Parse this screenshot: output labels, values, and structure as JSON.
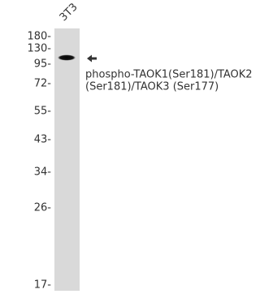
{
  "lane": {
    "label": "3T3"
  },
  "markers": [
    "180-",
    "130-",
    "95-",
    "72-",
    "55-",
    "43-",
    "34-",
    "26-",
    "17-"
  ],
  "annotation": {
    "lines": [
      "phospho-TAOK1(Ser181)/TAOK2",
      "(Ser181)/TAOK3 (Ser177)"
    ]
  }
}
